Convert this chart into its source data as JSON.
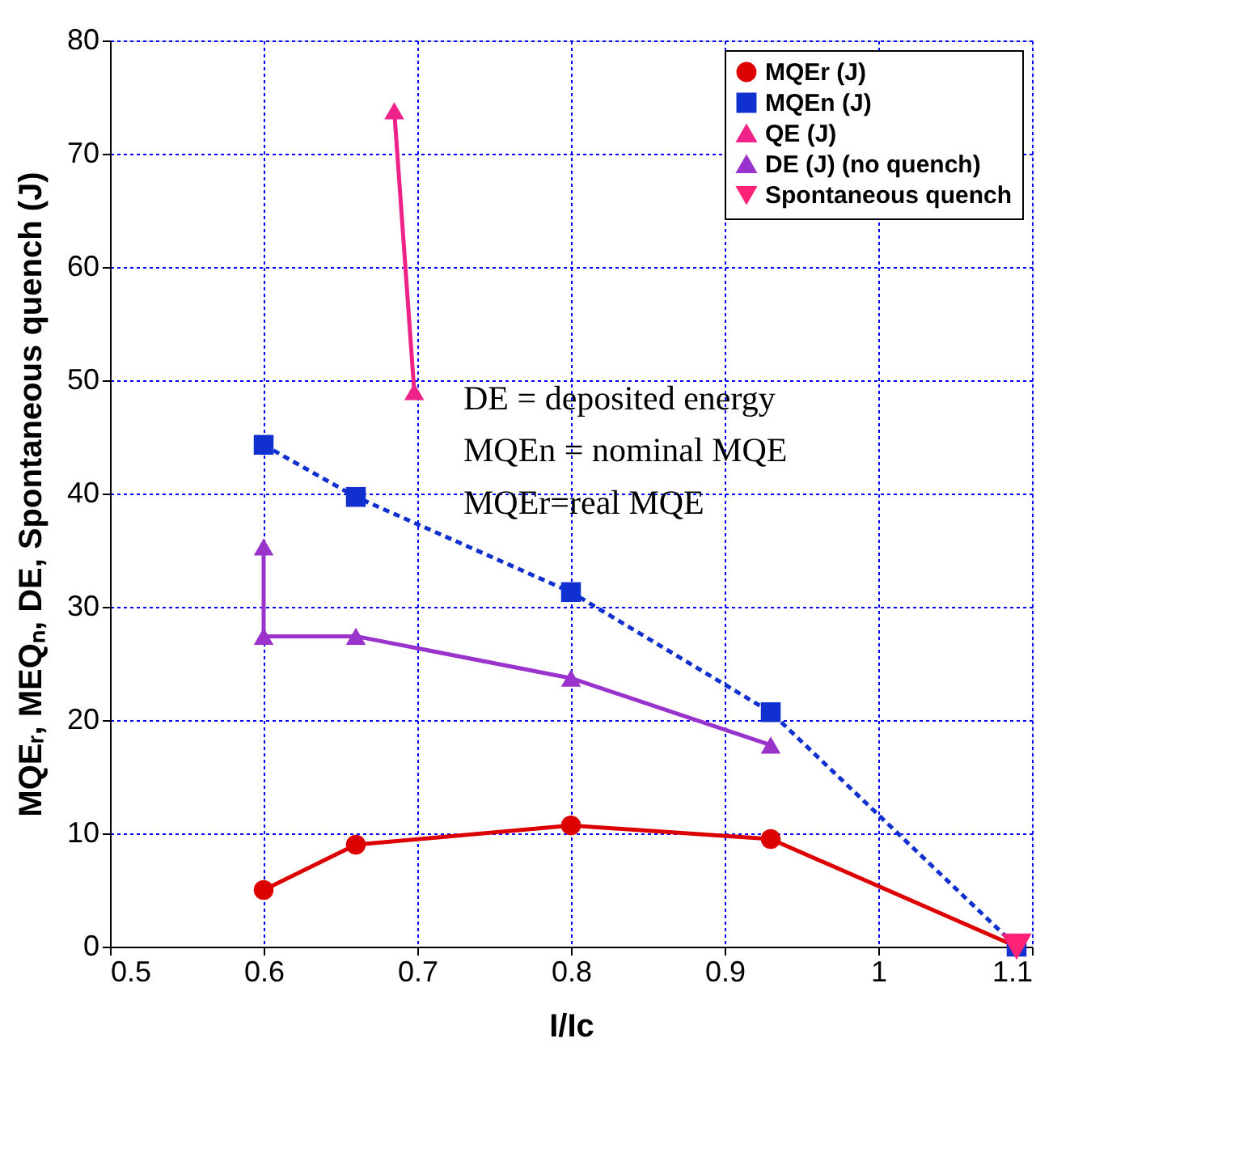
{
  "chart_data": {
    "type": "line",
    "xlabel": "I/Ic",
    "ylabel": "MQEᵣ, MEQₙ, DE, Spontaneous quench (J)",
    "xlim": [
      0.5,
      1.1
    ],
    "xticks": [
      0.5,
      0.6,
      0.7,
      0.8,
      0.9,
      1,
      1.1
    ],
    "ylim": [
      0,
      80
    ],
    "yticks": [
      0,
      10,
      20,
      30,
      40,
      50,
      60,
      70,
      80
    ],
    "grid": true,
    "legend": "top right",
    "annotations": [
      "DE = deposited energy",
      "MQEn = nominal MQE",
      "MQEr=real MQE"
    ],
    "series": [
      {
        "name": "MQEr (J)",
        "color": "#dd0000",
        "marker": "circle",
        "line_style": "solid",
        "x": [
          0.6,
          0.66,
          0.8,
          0.93,
          1.09
        ],
        "values": [
          5.0,
          9.0,
          10.7,
          9.5,
          0
        ]
      },
      {
        "name": "MQEn (J)",
        "color": "#1030d0",
        "marker": "square",
        "line_style": "dashed",
        "x": [
          0.6,
          0.66,
          0.8,
          0.93,
          1.09
        ],
        "values": [
          44.3,
          39.7,
          31.3,
          20.7,
          0
        ]
      },
      {
        "name": "QE (J)",
        "color": "#ee2288",
        "marker": "triangle",
        "line_style": "solid",
        "x": [
          0.685,
          0.698
        ],
        "values": [
          73.8,
          49.0
        ]
      },
      {
        "name": "DE (J) (no quench)",
        "color": "#9933cc",
        "marker": "triangle",
        "line_style": "solid",
        "x": [
          0.6,
          0.6,
          0.66,
          0.8,
          0.93
        ],
        "values": [
          35.3,
          27.4,
          27.4,
          23.7,
          17.8
        ]
      },
      {
        "name": "Spontaneous quench",
        "type": "scatter",
        "color": "#ff2277",
        "marker": "triangle-down",
        "x": [
          1.09
        ],
        "values": [
          0
        ]
      }
    ]
  }
}
